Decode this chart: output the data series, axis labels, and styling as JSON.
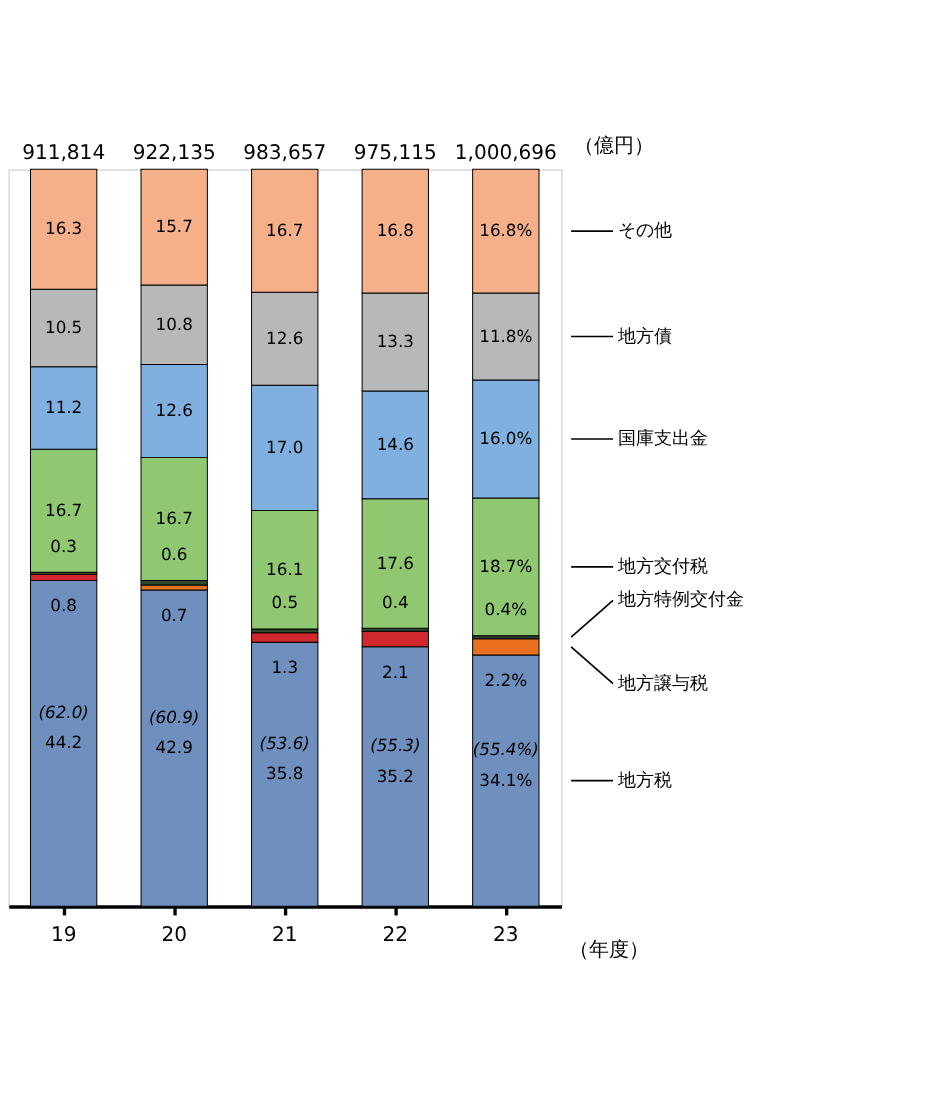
{
  "chart_data": {
    "type": "bar",
    "stacked": true,
    "legend": "right",
    "xlabel": "（年度）",
    "categories": [
      "19",
      "20",
      "21",
      "22",
      "23"
    ],
    "annotations": [
      "（億円）",
      {
        "text": "911,814",
        "x": "19",
        "y": 100
      },
      {
        "text": "922,135",
        "x": "20",
        "y": 100
      },
      {
        "text": "983,657",
        "x": "21",
        "y": 100
      },
      {
        "text": "975,115",
        "x": "22",
        "y": 100
      },
      {
        "text": "1,000,696",
        "x": "23",
        "y": 100
      },
      "(62.0)",
      "(60.9)",
      "(53.6)",
      "(55.3)",
      "(55.4%)"
    ],
    "series": [
      {
        "name": "地方税",
        "color": "#6f8fbf",
        "values": [
          44.2,
          42.9,
          35.8,
          35.2,
          34.1
        ],
        "value_labels": [
          "44.2",
          "42.9",
          "35.8",
          "35.2",
          "34.1%"
        ]
      },
      {
        "name": "地方譲与税",
        "colors": [
          "#d0282c",
          "#e8701e",
          "#d0282c",
          "#d0282c",
          "#e8701e"
        ],
        "values": [
          0.8,
          0.7,
          1.3,
          2.1,
          2.2
        ],
        "value_labels": [
          "0.8",
          "0.7",
          "1.3",
          "2.1",
          "2.2%"
        ]
      },
      {
        "name": "地方特例交付金",
        "color": "#2f4a2f",
        "values": [
          0.3,
          0.6,
          0.5,
          0.4,
          0.4
        ],
        "value_labels": [
          "0.3",
          "0.6",
          "0.5",
          "0.4",
          "0.4%"
        ]
      },
      {
        "name": "地方交付税",
        "color": "#8fc870",
        "values": [
          16.7,
          16.7,
          16.1,
          17.6,
          18.7
        ],
        "value_labels": [
          "16.7",
          "16.7",
          "16.1",
          "17.6",
          "18.7%"
        ]
      },
      {
        "name": "国庫支出金",
        "color": "#7fb0e0",
        "values": [
          11.2,
          12.6,
          17.0,
          14.6,
          16.0
        ],
        "value_labels": [
          "11.2",
          "12.6",
          "17.0",
          "14.6",
          "16.0%"
        ]
      },
      {
        "name": "地方債",
        "color": "#b8b8b8",
        "values": [
          10.5,
          10.8,
          12.6,
          13.3,
          11.8
        ],
        "value_labels": [
          "10.5",
          "10.8",
          "12.6",
          "13.3",
          "11.8%"
        ]
      },
      {
        "name": "その他",
        "color": "#f5b08a",
        "values": [
          16.3,
          15.7,
          16.7,
          16.8,
          16.8
        ],
        "value_labels": [
          "16.3",
          "15.7",
          "16.7",
          "16.8",
          "16.8%"
        ]
      }
    ]
  }
}
